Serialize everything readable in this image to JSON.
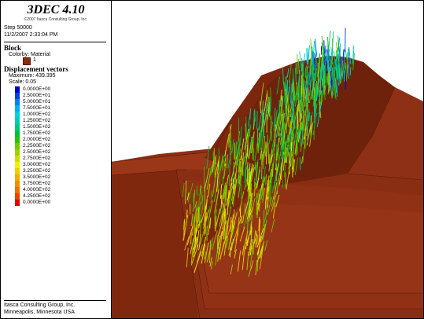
{
  "title": "3DEC 4.10",
  "copyright": "©2007 Itasca Consulting Group, Inc.",
  "step": "Step 50000",
  "timestamp": "11/2/2007 2:33:04 PM",
  "block": {
    "heading": "Block",
    "colorby": "Colorby: Material",
    "material_number": "1",
    "material_color": "#8b2b0f"
  },
  "displacement": {
    "heading": "Displacement vectors",
    "maximum": "Maximum: 439.395",
    "scale": "Scale: 0.05",
    "entries": [
      {
        "label": "0.0000E+00",
        "color": "#0000c8"
      },
      {
        "label": "2.5000E+01",
        "color": "#0040e0"
      },
      {
        "label": "5.0000E+01",
        "color": "#0080f0"
      },
      {
        "label": "7.5000E+01",
        "color": "#00b0f0"
      },
      {
        "label": "1.0000E+02",
        "color": "#00d0e0"
      },
      {
        "label": "1.2500E+02",
        "color": "#00d0b0"
      },
      {
        "label": "1.5000E+02",
        "color": "#00c880"
      },
      {
        "label": "1.7500E+02",
        "color": "#00c040"
      },
      {
        "label": "2.0000E+02",
        "color": "#30c000"
      },
      {
        "label": "2.2500E+02",
        "color": "#70c800"
      },
      {
        "label": "2.5000E+02",
        "color": "#a0d000"
      },
      {
        "label": "2.7500E+02",
        "color": "#c8e000"
      },
      {
        "label": "3.0000E+02",
        "color": "#f0f000"
      },
      {
        "label": "3.2500E+02",
        "color": "#f0d000"
      },
      {
        "label": "3.5000E+02",
        "color": "#f0b000"
      },
      {
        "label": "3.7500E+02",
        "color": "#f09000"
      },
      {
        "label": "4.0000E+02",
        "color": "#f07000"
      },
      {
        "label": "4.2500E+02",
        "color": "#f04000"
      },
      {
        "label": "0.0000E+00",
        "color": "#e00000"
      }
    ]
  },
  "footer": {
    "company": "Itasca Consulting Group, Inc.",
    "location": "Minneapolis, Minnesota  USA"
  }
}
